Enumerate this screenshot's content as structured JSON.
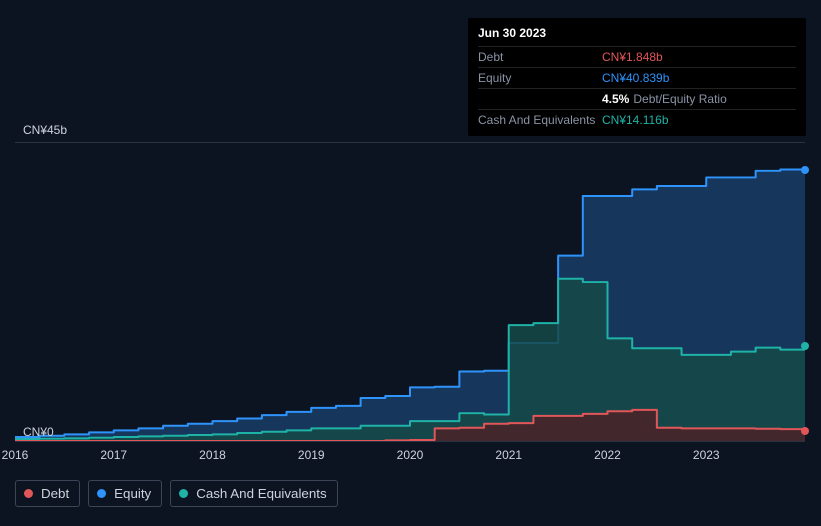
{
  "tooltip": {
    "date": "Jun 30 2023",
    "rows": [
      {
        "label": "Debt",
        "value": "CN¥1.848b",
        "color": "#e15759"
      },
      {
        "label": "Equity",
        "value": "CN¥40.839b",
        "color": "#2e93fa"
      },
      {
        "label": "",
        "value": "4.5%",
        "suffix": "Debt/Equity Ratio",
        "color": "#ffffff"
      },
      {
        "label": "Cash And Equivalents",
        "value": "CN¥14.116b",
        "color": "#1fb2a6"
      }
    ]
  },
  "chart": {
    "type": "area",
    "background_color": "#0d1421",
    "grid_top_color": "#2a3344",
    "y_top_label": "CN¥45b",
    "y_bottom_label": "CN¥0",
    "ylim": [
      0,
      45
    ],
    "xlim": [
      2016,
      2024
    ],
    "xticks": [
      2016,
      2017,
      2018,
      2019,
      2020,
      2021,
      2022,
      2023
    ],
    "label_fontsize": 12,
    "label_color": "#cdd3de",
    "series": [
      {
        "key": "equity",
        "label": "Equity",
        "stroke": "#2e93fa",
        "stroke_width": 2,
        "fill": "#1a3c66",
        "fill_opacity": 0.85,
        "x": [
          2016.0,
          2016.25,
          2016.5,
          2016.75,
          2017.0,
          2017.25,
          2017.5,
          2017.75,
          2018.0,
          2018.25,
          2018.5,
          2018.75,
          2019.0,
          2019.25,
          2019.5,
          2019.75,
          2020.0,
          2020.25,
          2020.5,
          2020.75,
          2021.0,
          2021.25,
          2021.5,
          2021.75,
          2022.0,
          2022.25,
          2022.5,
          2022.75,
          2023.0,
          2023.25,
          2023.5,
          2023.75,
          2024.0
        ],
        "y": [
          0.6,
          0.8,
          1.0,
          1.3,
          1.6,
          1.9,
          2.3,
          2.6,
          3.0,
          3.4,
          3.9,
          4.4,
          5.0,
          5.3,
          6.5,
          6.8,
          8.1,
          8.2,
          10.5,
          10.6,
          14.8,
          14.8,
          28.0,
          37.0,
          37.0,
          38.0,
          38.5,
          38.5,
          39.8,
          39.8,
          40.8,
          41.0,
          41.0
        ]
      },
      {
        "key": "cash",
        "label": "Cash And Equivalents",
        "stroke": "#1fb2a6",
        "stroke_width": 2,
        "fill": "#154946",
        "fill_opacity": 0.85,
        "x": [
          2016.0,
          2016.25,
          2016.5,
          2016.75,
          2017.0,
          2017.25,
          2017.5,
          2017.75,
          2018.0,
          2018.25,
          2018.5,
          2018.75,
          2019.0,
          2019.25,
          2019.5,
          2019.75,
          2020.0,
          2020.25,
          2020.5,
          2020.75,
          2021.0,
          2021.25,
          2021.5,
          2021.75,
          2022.0,
          2022.25,
          2022.5,
          2022.75,
          2023.0,
          2023.25,
          2023.5,
          2023.75,
          2024.0
        ],
        "y": [
          0.3,
          0.35,
          0.4,
          0.5,
          0.6,
          0.7,
          0.8,
          0.9,
          1.0,
          1.2,
          1.4,
          1.6,
          1.9,
          1.9,
          2.3,
          2.3,
          3.0,
          3.0,
          4.2,
          4.0,
          17.5,
          17.8,
          24.5,
          24.0,
          15.5,
          14.0,
          14.0,
          13.0,
          13.0,
          13.5,
          14.1,
          13.8,
          14.5
        ]
      },
      {
        "key": "debt",
        "label": "Debt",
        "stroke": "#e15759",
        "stroke_width": 2,
        "fill": "#4a2327",
        "fill_opacity": 0.85,
        "x": [
          2016.0,
          2016.5,
          2017.0,
          2017.5,
          2018.0,
          2018.5,
          2019.0,
          2019.5,
          2019.75,
          2020.0,
          2020.25,
          2020.5,
          2020.75,
          2021.0,
          2021.25,
          2021.5,
          2021.75,
          2022.0,
          2022.25,
          2022.5,
          2022.75,
          2023.0,
          2023.25,
          2023.5,
          2023.75,
          2024.0
        ],
        "y": [
          0,
          0,
          0,
          0,
          0,
          0,
          0,
          0,
          0.1,
          0.15,
          1.9,
          2.0,
          2.6,
          2.7,
          3.8,
          3.8,
          4.1,
          4.5,
          4.7,
          2.0,
          1.9,
          1.9,
          1.9,
          1.85,
          1.8,
          1.8
        ]
      }
    ],
    "end_markers": [
      {
        "key": "equity",
        "y": 41.0,
        "color": "#2e93fa"
      },
      {
        "key": "cash",
        "y": 14.5,
        "color": "#1fb2a6"
      },
      {
        "key": "debt",
        "y": 1.8,
        "color": "#e15759"
      }
    ]
  },
  "legend": {
    "items": [
      {
        "key": "debt",
        "label": "Debt",
        "color": "#e15759"
      },
      {
        "key": "equity",
        "label": "Equity",
        "color": "#2e93fa"
      },
      {
        "key": "cash",
        "label": "Cash And Equivalents",
        "color": "#1fb2a6"
      }
    ],
    "border_color": "#3a4558",
    "text_color": "#cdd3de"
  }
}
